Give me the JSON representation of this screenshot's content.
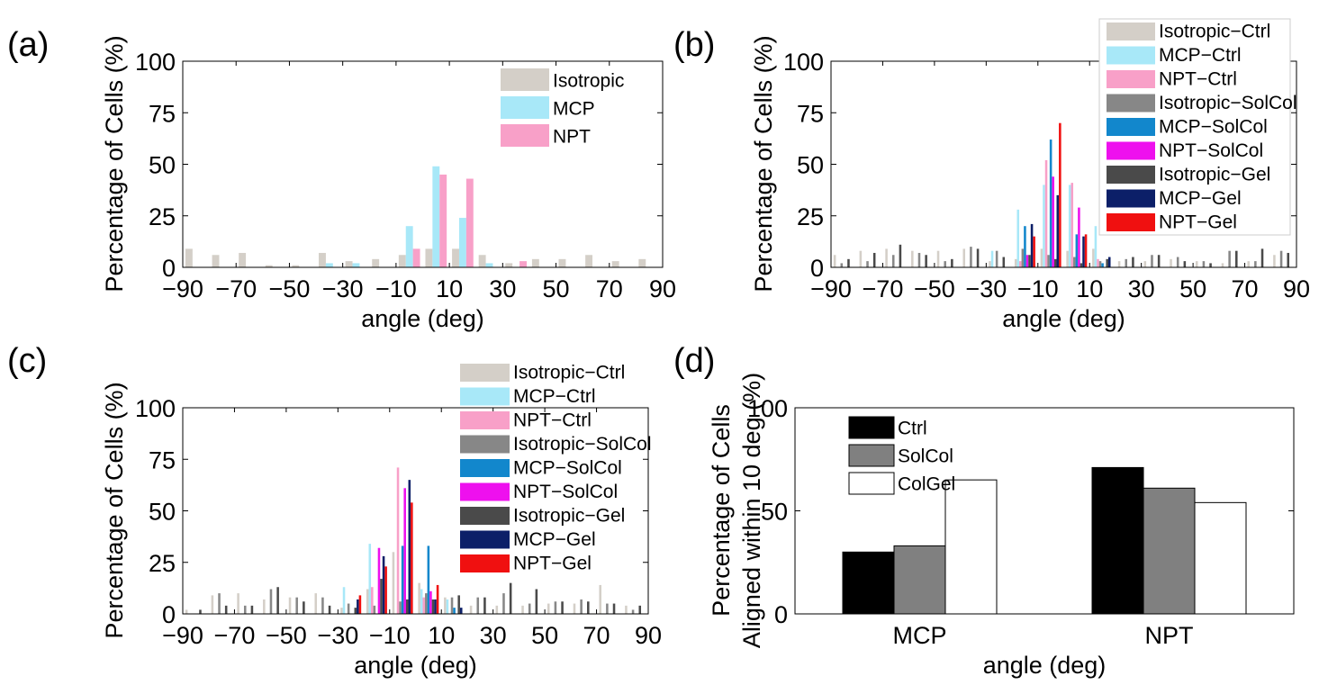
{
  "colors": {
    "Isotropic-Ctrl": "#d4cfc8",
    "MCP-Ctrl": "#a8e8f8",
    "NPT-Ctrl": "#f8a0c8",
    "Isotropic-SolCol": "#878787",
    "MCP-SolCol": "#1287cc",
    "NPT-SolCol": "#ee10ee",
    "Isotropic-Gel": "#4a4a4a",
    "MCP-Gel": "#0c1f68",
    "NPT-Gel": "#f01010",
    "Ctrl": "#000000",
    "SolCol": "#808080",
    "ColGel": "#ffffff"
  },
  "chart_data": [
    {
      "panel_label": "(a)",
      "type": "bar",
      "xlabel": "angle (deg)",
      "ylabel": "Percentage of Cells (%)",
      "xlim": [
        -90,
        90
      ],
      "ylim": [
        0,
        100
      ],
      "xticks": [
        "−90",
        "−70",
        "−50",
        "−30",
        "−10",
        "10",
        "30",
        "50",
        "70",
        "90"
      ],
      "yticks": [
        "0",
        "25",
        "50",
        "75",
        "100"
      ],
      "legend_position": "top-right",
      "categories": [
        -85,
        -75,
        -65,
        -55,
        -45,
        -35,
        -25,
        -15,
        -5,
        5,
        15,
        25,
        35,
        45,
        55,
        65,
        75,
        85
      ],
      "series": [
        {
          "name": "Isotropic",
          "color_key": "Isotropic-Ctrl",
          "values": [
            9,
            6,
            7,
            1,
            1,
            7,
            3,
            4,
            6,
            9,
            9,
            6,
            2,
            4,
            4,
            6,
            3,
            4
          ]
        },
        {
          "name": "MCP",
          "color_key": "MCP-Ctrl",
          "values": [
            0,
            0,
            0,
            0,
            0,
            2,
            2,
            0,
            20,
            49,
            24,
            2,
            0,
            0,
            0,
            0,
            0,
            0
          ]
        },
        {
          "name": "NPT",
          "color_key": "NPT-Ctrl",
          "values": [
            0,
            0,
            0,
            0,
            0,
            0,
            0,
            0,
            9,
            45,
            43,
            0,
            3,
            0,
            0,
            0,
            0,
            0
          ]
        }
      ]
    },
    {
      "panel_label": "(b)",
      "type": "bar",
      "xlabel": "angle (deg)",
      "ylabel": "Percentage of Cells (%)",
      "xlim": [
        -90,
        90
      ],
      "ylim": [
        0,
        100
      ],
      "xticks": [
        "−90",
        "−70",
        "−50",
        "−30",
        "−10",
        "10",
        "30",
        "50",
        "70",
        "90"
      ],
      "yticks": [
        "0",
        "25",
        "50",
        "75",
        "100"
      ],
      "legend_position": "top-right",
      "categories": [
        -85,
        -75,
        -65,
        -55,
        -45,
        -35,
        -25,
        -15,
        -5,
        5,
        15,
        25,
        35,
        45,
        55,
        65,
        75,
        85
      ],
      "series": [
        {
          "name": "Isotropic−Ctrl",
          "color_key": "Isotropic-Ctrl",
          "values": [
            6,
            8,
            9,
            8,
            8,
            9,
            3,
            4,
            9,
            8,
            9,
            3,
            3,
            4,
            3,
            2,
            3,
            6
          ]
        },
        {
          "name": "MCP−Ctrl",
          "color_key": "MCP-Ctrl",
          "values": [
            0,
            0,
            0,
            0,
            0,
            0,
            8,
            28,
            40,
            40,
            20,
            0,
            0,
            0,
            0,
            0,
            0,
            0
          ]
        },
        {
          "name": "NPT−Ctrl",
          "color_key": "NPT-Ctrl",
          "values": [
            0,
            0,
            0,
            0,
            0,
            0,
            0,
            3,
            52,
            41,
            4,
            0,
            0,
            0,
            0,
            0,
            0,
            0
          ]
        },
        {
          "name": "Isotropic−SolCol",
          "color_key": "Isotropic-SolCol",
          "values": [
            2,
            3,
            6,
            7,
            3,
            10,
            8,
            9,
            6,
            5,
            3,
            4,
            6,
            5,
            3,
            8,
            3,
            8
          ]
        },
        {
          "name": "MCP−SolCol",
          "color_key": "MCP-SolCol",
          "values": [
            0,
            0,
            0,
            0,
            0,
            0,
            0,
            20,
            62,
            16,
            2,
            0,
            0,
            0,
            0,
            0,
            0,
            0
          ]
        },
        {
          "name": "NPT−SolCol",
          "color_key": "NPT-SolCol",
          "values": [
            0,
            0,
            0,
            0,
            0,
            0,
            0,
            6,
            44,
            29,
            0,
            0,
            0,
            0,
            0,
            0,
            0,
            0
          ]
        },
        {
          "name": "Isotropic−Gel",
          "color_key": "Isotropic-Gel",
          "values": [
            4,
            7,
            11,
            6,
            4,
            9,
            5,
            6,
            4,
            2,
            4,
            5,
            6,
            3,
            2,
            8,
            9,
            7
          ]
        },
        {
          "name": "MCP−Gel",
          "color_key": "MCP-Gel",
          "values": [
            0,
            0,
            0,
            0,
            0,
            0,
            0,
            21,
            35,
            15,
            5,
            0,
            0,
            0,
            0,
            0,
            0,
            0
          ]
        },
        {
          "name": "NPT−Gel",
          "color_key": "NPT-Gel",
          "values": [
            0,
            0,
            0,
            0,
            0,
            0,
            0,
            15,
            70,
            16,
            0,
            0,
            0,
            0,
            0,
            0,
            0,
            0
          ]
        }
      ]
    },
    {
      "panel_label": "(c)",
      "type": "bar",
      "xlabel": "angle (deg)",
      "ylabel": "Percentage of Cells (%)",
      "xlim": [
        -90,
        90
      ],
      "ylim": [
        0,
        100
      ],
      "xticks": [
        "−90",
        "−70",
        "−50",
        "−30",
        "−10",
        "10",
        "30",
        "50",
        "70",
        "90"
      ],
      "yticks": [
        "0",
        "25",
        "50",
        "75",
        "100"
      ],
      "legend_position": "top-right",
      "categories": [
        -85,
        -75,
        -65,
        -55,
        -45,
        -35,
        -25,
        -15,
        -5,
        5,
        15,
        25,
        35,
        45,
        55,
        65,
        75,
        85
      ],
      "series": [
        {
          "name": "Isotropic−Ctrl",
          "color_key": "Isotropic-Ctrl",
          "values": [
            2,
            9,
            10,
            7,
            8,
            10,
            3,
            12,
            30,
            15,
            8,
            4,
            4,
            4,
            5,
            5,
            14,
            4
          ]
        },
        {
          "name": "MCP−Ctrl",
          "color_key": "MCP-Ctrl",
          "values": [
            0,
            0,
            0,
            0,
            0,
            0,
            13,
            34,
            0,
            12,
            7,
            0,
            0,
            0,
            0,
            0,
            0,
            0
          ]
        },
        {
          "name": "NPT−Ctrl",
          "color_key": "NPT-Ctrl",
          "values": [
            0,
            0,
            0,
            0,
            0,
            0,
            0,
            13,
            71,
            8,
            0,
            0,
            0,
            0,
            0,
            0,
            0,
            0
          ]
        },
        {
          "name": "Isotropic−SolCol",
          "color_key": "Isotropic-SolCol",
          "values": [
            0,
            10,
            4,
            12,
            8,
            8,
            5,
            4,
            6,
            10,
            8,
            8,
            10,
            5,
            6,
            7,
            5,
            2
          ]
        },
        {
          "name": "MCP−SolCol",
          "color_key": "MCP-SolCol",
          "values": [
            0,
            0,
            0,
            0,
            0,
            0,
            0,
            0,
            33,
            33,
            3,
            0,
            0,
            0,
            0,
            0,
            0,
            0
          ]
        },
        {
          "name": "NPT−SolCol",
          "color_key": "NPT-SolCol",
          "values": [
            0,
            0,
            0,
            0,
            0,
            0,
            0,
            32,
            61,
            11,
            0,
            0,
            0,
            0,
            0,
            0,
            0,
            0
          ]
        },
        {
          "name": "Isotropic−Gel",
          "color_key": "Isotropic-Gel",
          "values": [
            2,
            4,
            4,
            13,
            6,
            4,
            3,
            17,
            7,
            7,
            9,
            8,
            15,
            12,
            6,
            6,
            5,
            4
          ]
        },
        {
          "name": "MCP−Gel",
          "color_key": "MCP-Gel",
          "values": [
            0,
            0,
            0,
            0,
            0,
            0,
            7,
            28,
            65,
            7,
            3,
            0,
            0,
            0,
            0,
            0,
            0,
            0
          ]
        },
        {
          "name": "NPT−Gel",
          "color_key": "NPT-Gel",
          "values": [
            0,
            0,
            0,
            0,
            0,
            0,
            9,
            23,
            54,
            14,
            0,
            0,
            0,
            0,
            0,
            0,
            0,
            0
          ]
        }
      ]
    },
    {
      "panel_label": "(d)",
      "type": "bar",
      "xlabel": "angle (deg)",
      "ylabel": "Percentage of Cells",
      "ylabel2": "Aligned within 10 deg (%)",
      "ylim": [
        0,
        100
      ],
      "yticks": [
        "0",
        "50",
        "100"
      ],
      "legend_position": "top-left",
      "categories": [
        "MCP",
        "NPT"
      ],
      "series": [
        {
          "name": "Ctrl",
          "color_key": "Ctrl",
          "values": [
            30,
            71
          ]
        },
        {
          "name": "SolCol",
          "color_key": "SolCol",
          "values": [
            33,
            61
          ]
        },
        {
          "name": "ColGel",
          "color_key": "ColGel",
          "values": [
            65,
            54
          ]
        }
      ]
    }
  ]
}
